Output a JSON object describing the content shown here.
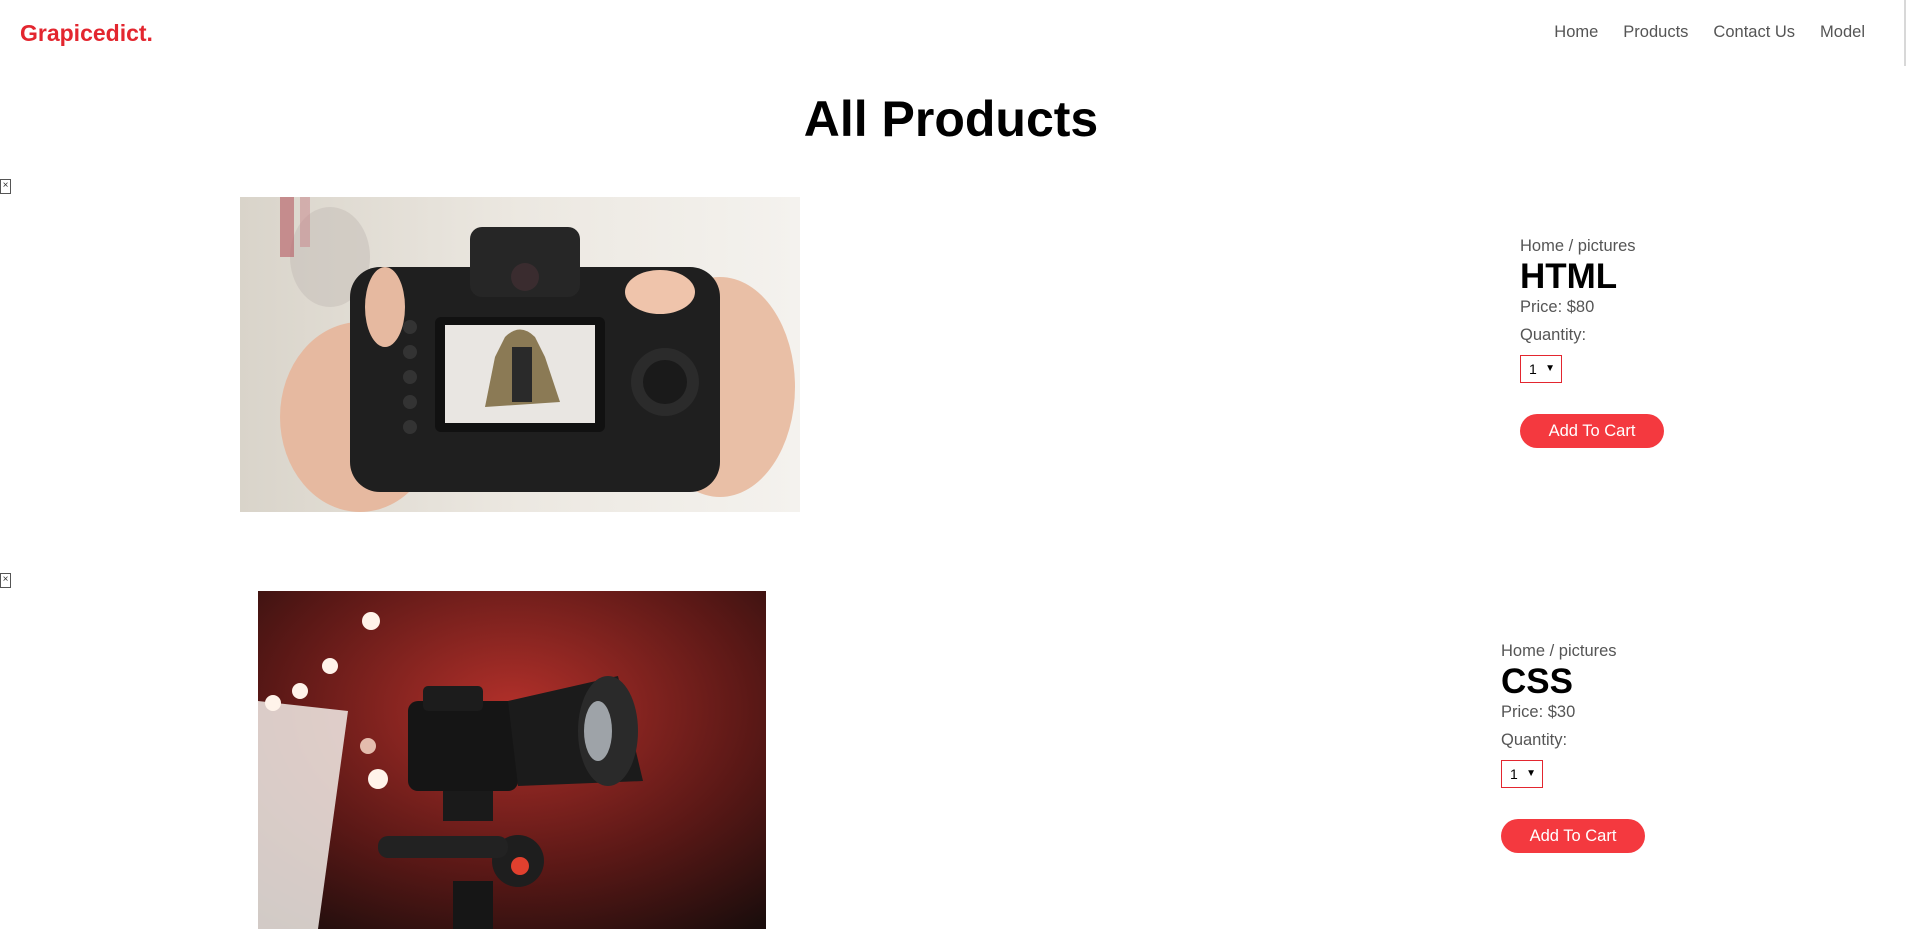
{
  "header": {
    "logo": "Grapicedict.",
    "nav": [
      "Home",
      "Products",
      "Contact Us",
      "Model"
    ]
  },
  "page_title": "All Products",
  "products": [
    {
      "breadcrumb": "Home / pictures",
      "name": "HTML",
      "price": "Price: $80",
      "quantity_label": "Quantity:",
      "quantity_value": "1",
      "button": "Add To Cart",
      "image": "hands-holding-camera-photo",
      "remove_icon": "close-icon"
    },
    {
      "breadcrumb": "Home / pictures",
      "name": "CSS",
      "price": "Price: $30",
      "quantity_label": "Quantity:",
      "quantity_value": "1",
      "button": "Add To Cart",
      "image": "camera-on-tripod-photo",
      "remove_icon": "close-icon"
    }
  ],
  "colors": {
    "brand": "#e3262f",
    "button": "#f4393f"
  }
}
